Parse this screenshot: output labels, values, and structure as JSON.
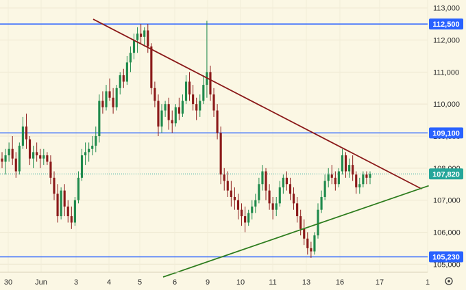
{
  "chart_data": {
    "type": "candlestick",
    "y_axis": {
      "ticks": [
        105000,
        106000,
        107000,
        108000,
        109000,
        110000,
        111000,
        112000,
        113000
      ],
      "tick_labels": [
        "105,000",
        "106,000",
        "107,000",
        "108,000",
        "109,000",
        "110,000",
        "111,000",
        "112,000",
        "113,000"
      ],
      "range": [
        104750,
        113250
      ],
      "position": "right"
    },
    "x_axis": {
      "labels": [
        "30",
        "Jun",
        "3",
        "4",
        "5",
        "6",
        "9",
        "10",
        "11",
        "13",
        "16",
        "17",
        "1"
      ]
    },
    "horizontal_levels": [
      {
        "value": 112500,
        "label": "112,500",
        "color": "#2962ff"
      },
      {
        "value": 109100,
        "label": "109,100",
        "color": "#2962ff"
      },
      {
        "value": 105230,
        "label": "105,230",
        "color": "#2962ff"
      }
    ],
    "current_price": {
      "value": 107820,
      "label": "107,820",
      "color": "#26a69a"
    },
    "trendlines": [
      {
        "name": "resistance",
        "color": "#8b1a1a",
        "from": {
          "x": 0.2,
          "y": 112650
        },
        "to": {
          "x": 0.905,
          "y": 107350
        }
      },
      {
        "name": "support",
        "color": "#2e7d1e",
        "from": {
          "x": 0.35,
          "y": 104600
        },
        "to": {
          "x": 0.92,
          "y": 107450
        }
      }
    ],
    "candles": [
      [
        108300,
        108500,
        108000,
        108200
      ],
      [
        108200,
        108600,
        107800,
        108400
      ],
      [
        108400,
        108800,
        108200,
        108600
      ],
      [
        108600,
        109000,
        108100,
        108300
      ],
      [
        108300,
        108500,
        107700,
        107900
      ],
      [
        107900,
        108800,
        107800,
        108700
      ],
      [
        108700,
        109600,
        108600,
        109300
      ],
      [
        109300,
        109700,
        108600,
        108900
      ],
      [
        108900,
        109000,
        108100,
        108300
      ],
      [
        108300,
        108700,
        108000,
        108500
      ],
      [
        108500,
        108800,
        108200,
        108400
      ],
      [
        108400,
        108600,
        108000,
        108300
      ],
      [
        108300,
        108600,
        108100,
        108400
      ],
      [
        108400,
        108500,
        108100,
        108200
      ],
      [
        108200,
        108400,
        107500,
        107700
      ],
      [
        107700,
        107900,
        107000,
        107200
      ],
      [
        107200,
        107500,
        106300,
        106500
      ],
      [
        106500,
        107400,
        106400,
        107300
      ],
      [
        107300,
        107500,
        106500,
        106800
      ],
      [
        106800,
        107000,
        106300,
        106500
      ],
      [
        106500,
        106800,
        106100,
        106300
      ],
      [
        106300,
        107100,
        106200,
        107000
      ],
      [
        107000,
        107900,
        106900,
        107700
      ],
      [
        107700,
        108600,
        107600,
        108400
      ],
      [
        108400,
        108800,
        108100,
        108500
      ],
      [
        108500,
        108800,
        108200,
        108600
      ],
      [
        108600,
        109000,
        108400,
        108700
      ],
      [
        108700,
        109300,
        108500,
        109000
      ],
      [
        109000,
        110300,
        108800,
        110100
      ],
      [
        110100,
        110400,
        109700,
        109900
      ],
      [
        109900,
        110600,
        109800,
        110400
      ],
      [
        110400,
        110800,
        110100,
        110200
      ],
      [
        110200,
        110500,
        109700,
        109900
      ],
      [
        109900,
        110600,
        109800,
        110500
      ],
      [
        110500,
        111000,
        110300,
        110900
      ],
      [
        110900,
        111100,
        110500,
        110700
      ],
      [
        110700,
        111500,
        110600,
        111300
      ],
      [
        111300,
        111800,
        111000,
        111600
      ],
      [
        111600,
        112200,
        111400,
        112000
      ],
      [
        112000,
        112400,
        111600,
        112200
      ],
      [
        112200,
        112500,
        111900,
        112100
      ],
      [
        112100,
        112400,
        111800,
        112300
      ],
      [
        112300,
        112500,
        111600,
        111800
      ],
      [
        111800,
        111900,
        110300,
        110500
      ],
      [
        110500,
        110700,
        109900,
        110100
      ],
      [
        110100,
        110300,
        109000,
        109300
      ],
      [
        109300,
        110000,
        109100,
        109800
      ],
      [
        109800,
        110100,
        109600,
        110000
      ],
      [
        110000,
        110200,
        109200,
        109500
      ],
      [
        109500,
        109800,
        109100,
        109400
      ],
      [
        109400,
        110000,
        109300,
        109900
      ],
      [
        109900,
        110200,
        109500,
        109700
      ],
      [
        109700,
        110300,
        109600,
        110100
      ],
      [
        110100,
        110900,
        110000,
        110700
      ],
      [
        110700,
        111000,
        110100,
        110300
      ],
      [
        110300,
        110600,
        109800,
        110000
      ],
      [
        110000,
        110200,
        109500,
        109800
      ],
      [
        109800,
        110300,
        109600,
        110100
      ],
      [
        110100,
        110900,
        110000,
        110600
      ],
      [
        110600,
        112600,
        110200,
        111000
      ],
      [
        111000,
        111200,
        110100,
        110300
      ],
      [
        110300,
        110500,
        109600,
        109800
      ],
      [
        109800,
        110000,
        108900,
        109100
      ],
      [
        109100,
        109300,
        107500,
        107800
      ],
      [
        107800,
        108000,
        107300,
        107600
      ],
      [
        107600,
        107900,
        107100,
        107300
      ],
      [
        107300,
        107600,
        106800,
        107100
      ],
      [
        107100,
        107400,
        106700,
        107000
      ],
      [
        107000,
        107200,
        106400,
        106700
      ],
      [
        106700,
        106900,
        106200,
        106500
      ],
      [
        106500,
        106800,
        106000,
        106300
      ],
      [
        106300,
        106700,
        106200,
        106600
      ],
      [
        106600,
        107000,
        106400,
        106800
      ],
      [
        106800,
        107200,
        106600,
        107000
      ],
      [
        107000,
        107700,
        106900,
        107500
      ],
      [
        107500,
        108100,
        107300,
        107900
      ],
      [
        107900,
        108000,
        107000,
        107300
      ],
      [
        107300,
        107500,
        106700,
        106900
      ],
      [
        106900,
        107100,
        106400,
        106700
      ],
      [
        106700,
        107100,
        106500,
        106900
      ],
      [
        106900,
        107600,
        106800,
        107400
      ],
      [
        107400,
        107800,
        107200,
        107700
      ],
      [
        107700,
        107900,
        107300,
        107500
      ],
      [
        107500,
        107700,
        107000,
        107200
      ],
      [
        107200,
        107400,
        106700,
        106900
      ],
      [
        106900,
        107100,
        106300,
        106500
      ],
      [
        106500,
        106700,
        105900,
        106100
      ],
      [
        106100,
        106400,
        105600,
        105800
      ],
      [
        105800,
        106000,
        105300,
        105500
      ],
      [
        105500,
        105700,
        105200,
        105400
      ],
      [
        105400,
        106000,
        105300,
        105900
      ],
      [
        105900,
        106900,
        105800,
        106700
      ],
      [
        106700,
        107300,
        106600,
        107100
      ],
      [
        107100,
        107800,
        107000,
        107600
      ],
      [
        107600,
        108000,
        107400,
        107800
      ],
      [
        107800,
        108100,
        107500,
        107700
      ],
      [
        107700,
        107900,
        107300,
        107500
      ],
      [
        107500,
        108000,
        107400,
        107900
      ],
      [
        107900,
        108600,
        107800,
        108400
      ],
      [
        108400,
        108500,
        107700,
        107900
      ],
      [
        107900,
        108300,
        107700,
        108100
      ],
      [
        108100,
        108400,
        107600,
        107800
      ],
      [
        107800,
        107900,
        107200,
        107400
      ],
      [
        107400,
        107700,
        107200,
        107500
      ],
      [
        107500,
        107900,
        107400,
        107800
      ],
      [
        107800,
        107900,
        107500,
        107700
      ],
      [
        107700,
        107900,
        107500,
        107820
      ]
    ]
  }
}
